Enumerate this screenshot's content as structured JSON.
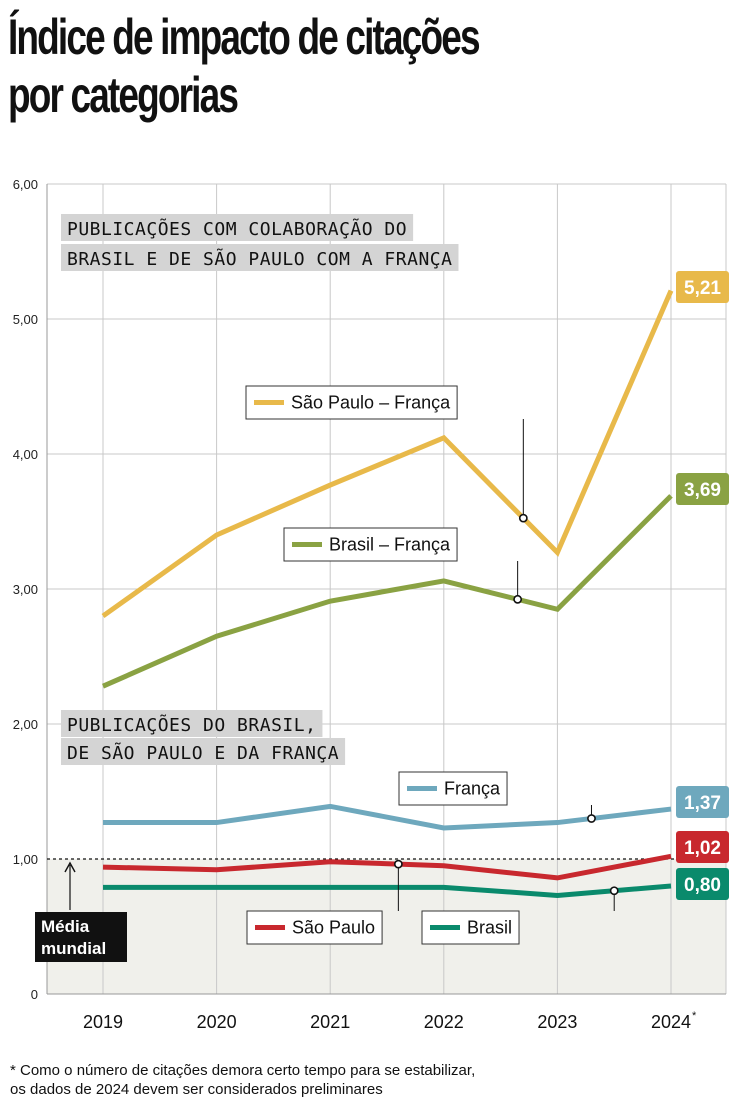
{
  "title": {
    "line1": "Índice de impacto de citações",
    "line2": "por categorias"
  },
  "footnote": {
    "line1": "* Como o número de citações demora certo tempo para se estabilizar,",
    "line2": "os dados de 2024 devem ser considerados preliminares"
  },
  "chart_data": {
    "type": "line",
    "categories": [
      "2019",
      "2020",
      "2021",
      "2022",
      "2023",
      "2024"
    ],
    "category_marker": [
      "",
      "",
      "",
      "",
      "",
      "*"
    ],
    "y_ticks": [
      "0",
      "1,00",
      "2,00",
      "3,00",
      "4,00",
      "5,00",
      "6,00"
    ],
    "ylim": [
      0,
      6
    ],
    "grid": true,
    "section_labels": [
      [
        "PUBLICAÇÕES COM COLABORAÇÃO DO",
        "BRASIL E DE SÃO PAULO COM A FRANÇA"
      ],
      [
        "PUBLICAÇÕES DO BRASIL,",
        "DE SÃO PAULO E DA FRANÇA"
      ]
    ],
    "reference_line": {
      "value": 1.0,
      "label_line1": "Média",
      "label_line2": "mundial",
      "color": "#111111",
      "band_color": "#f0f0eb"
    },
    "series": [
      {
        "name": "São Paulo – França",
        "values": [
          2.8,
          3.4,
          3.77,
          4.12,
          3.27,
          5.21
        ],
        "end_label": "5,21",
        "color": "#e8b94a",
        "label_pos": 3.7
      },
      {
        "name": "Brasil – França",
        "values": [
          2.28,
          2.65,
          2.91,
          3.06,
          2.85,
          3.69
        ],
        "end_label": "3,69",
        "color": "#8aa243",
        "label_pos": 3.65
      },
      {
        "name": "França",
        "values": [
          1.27,
          1.27,
          1.39,
          1.23,
          1.27,
          1.37
        ],
        "end_label": "1,37",
        "color": "#6ea8bd",
        "label_pos": 4.3
      },
      {
        "name": "São Paulo",
        "values": [
          0.94,
          0.92,
          0.98,
          0.95,
          0.86,
          1.02
        ],
        "end_label": "1,02",
        "color": "#c8282e",
        "label_pos": 2.6
      },
      {
        "name": "Brasil",
        "values": [
          0.79,
          0.79,
          0.79,
          0.79,
          0.73,
          0.8
        ],
        "end_label": "0,80",
        "color": "#0a8a6c",
        "label_pos": 4.5
      }
    ]
  }
}
